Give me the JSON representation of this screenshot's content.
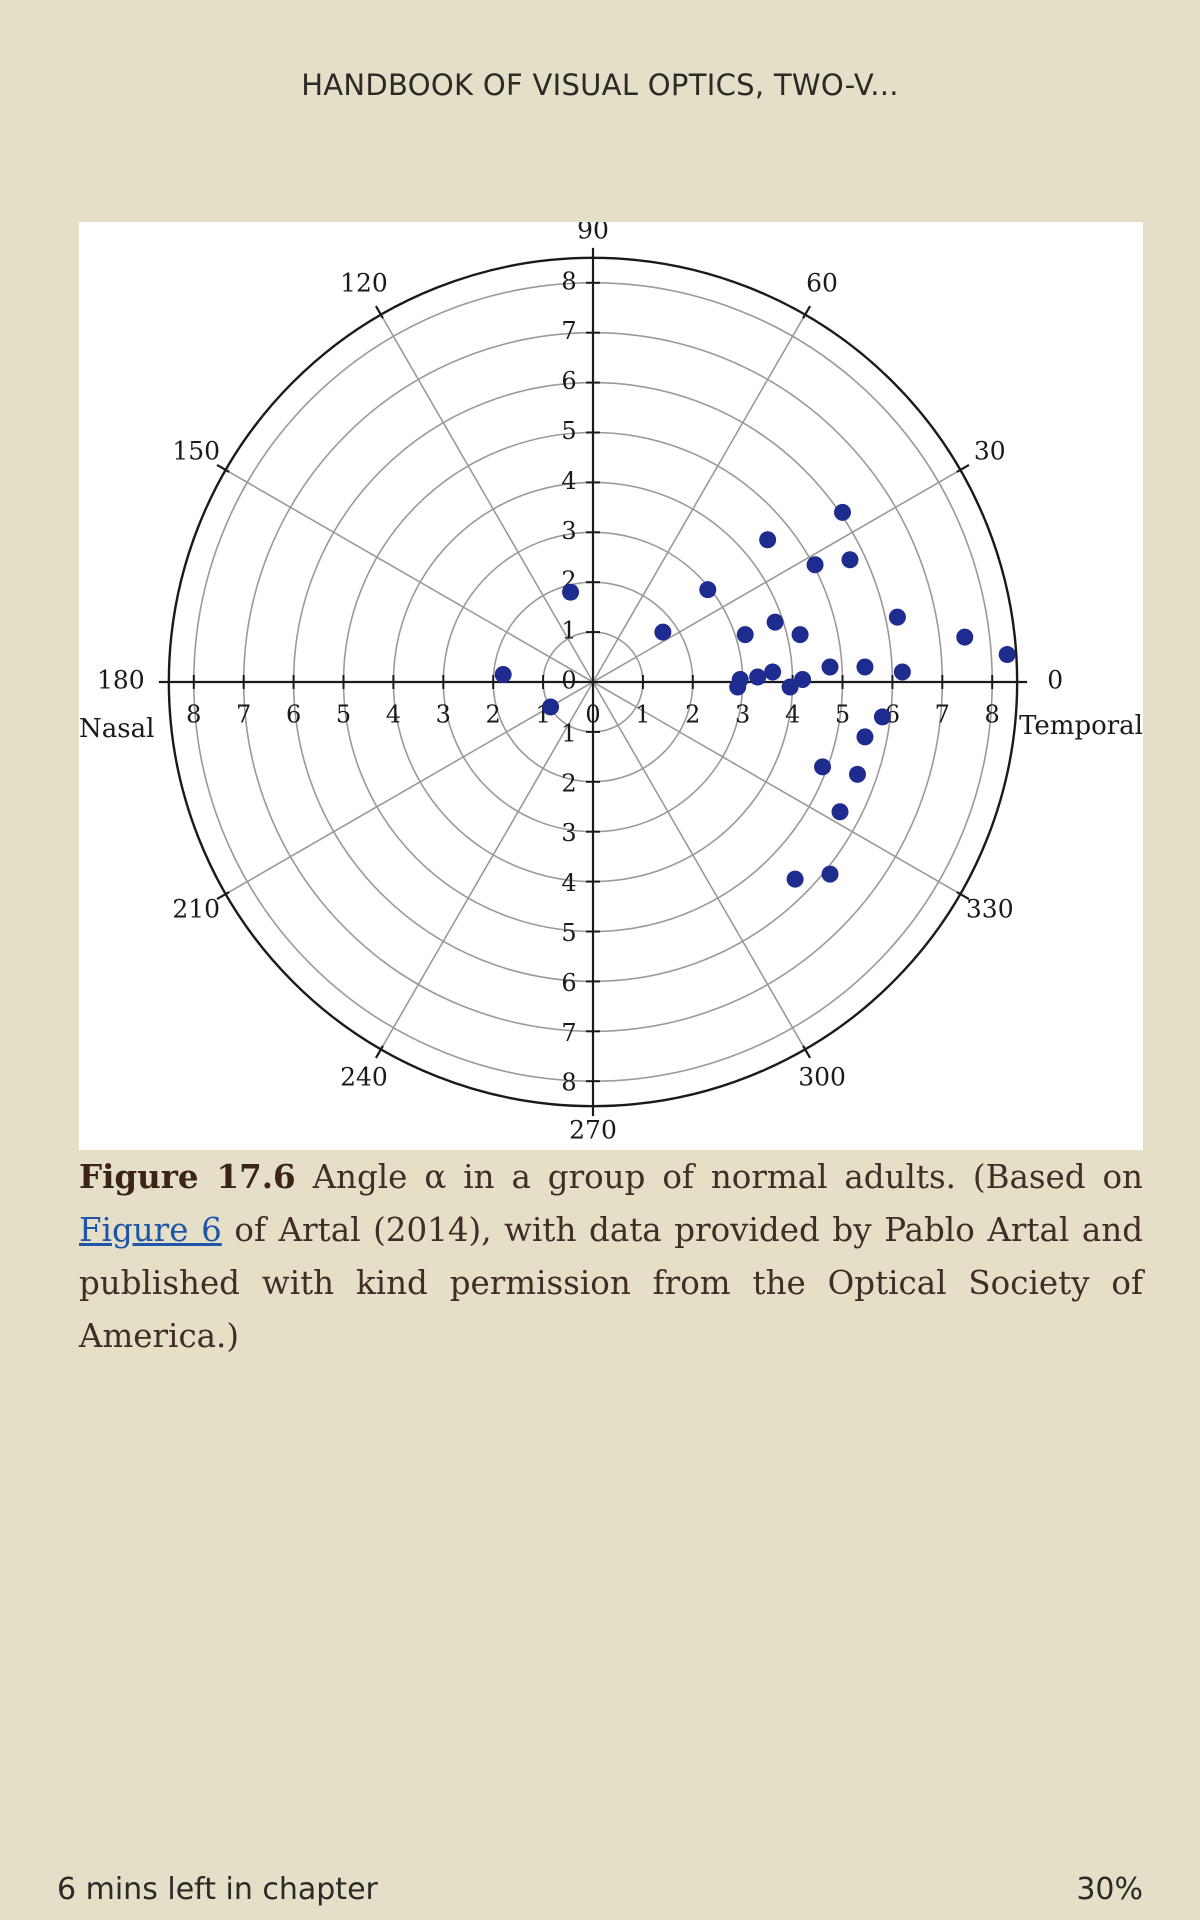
{
  "header": {
    "book_title": "HANDBOOK OF VISUAL OPTICS, TWO-V..."
  },
  "chart_data": {
    "type": "scatter",
    "coordinate_system": "polar",
    "radial_range": [
      0,
      8
    ],
    "radial_ticks": [
      0,
      1,
      2,
      3,
      4,
      5,
      6,
      7,
      8
    ],
    "angle_labels": [
      "0",
      "30",
      "60",
      "90",
      "120",
      "150",
      "180",
      "210",
      "240",
      "270",
      "300",
      "330"
    ],
    "side_labels": {
      "left": "Nasal",
      "right": "Temporal"
    },
    "grid": true,
    "point_color": "#1d2c8e",
    "points": [
      {
        "x": 5.0,
        "y": 3.4
      },
      {
        "x": 3.5,
        "y": 2.85
      },
      {
        "x": 4.45,
        "y": 2.35
      },
      {
        "x": 5.15,
        "y": 2.45
      },
      {
        "x": 2.3,
        "y": 1.85
      },
      {
        "x": 1.4,
        "y": 1.0
      },
      {
        "x": 3.05,
        "y": 0.95
      },
      {
        "x": 3.65,
        "y": 1.2
      },
      {
        "x": 4.15,
        "y": 0.95
      },
      {
        "x": 6.1,
        "y": 1.3
      },
      {
        "x": 7.45,
        "y": 0.9
      },
      {
        "x": 8.3,
        "y": 0.55
      },
      {
        "x": 2.9,
        "y": -0.1
      },
      {
        "x": 2.95,
        "y": 0.05
      },
      {
        "x": 3.3,
        "y": 0.1
      },
      {
        "x": 3.6,
        "y": 0.2
      },
      {
        "x": 3.95,
        "y": -0.1
      },
      {
        "x": 4.2,
        "y": 0.05
      },
      {
        "x": 4.75,
        "y": 0.3
      },
      {
        "x": 5.45,
        "y": 0.3
      },
      {
        "x": 6.2,
        "y": 0.2
      },
      {
        "x": 5.8,
        "y": -0.7
      },
      {
        "x": 5.45,
        "y": -1.1
      },
      {
        "x": 4.6,
        "y": -1.7
      },
      {
        "x": 5.3,
        "y": -1.85
      },
      {
        "x": 4.95,
        "y": -2.6
      },
      {
        "x": 4.75,
        "y": -3.85
      },
      {
        "x": 4.05,
        "y": -3.95
      },
      {
        "x": -0.45,
        "y": 1.8
      },
      {
        "x": -1.8,
        "y": 0.15
      },
      {
        "x": -0.85,
        "y": -0.5
      }
    ]
  },
  "caption": {
    "label": "Figure 17.6",
    "text_before_link": " Angle α in a group of normal adults. (Based on ",
    "link_text": "Figure 6",
    "text_after_link": " of Artal (2014), with data provided by Pablo Artal and published with kind permission from the Optical Society of America.)"
  },
  "footer": {
    "time_left": "6 mins left in chapter",
    "progress": "30%"
  }
}
